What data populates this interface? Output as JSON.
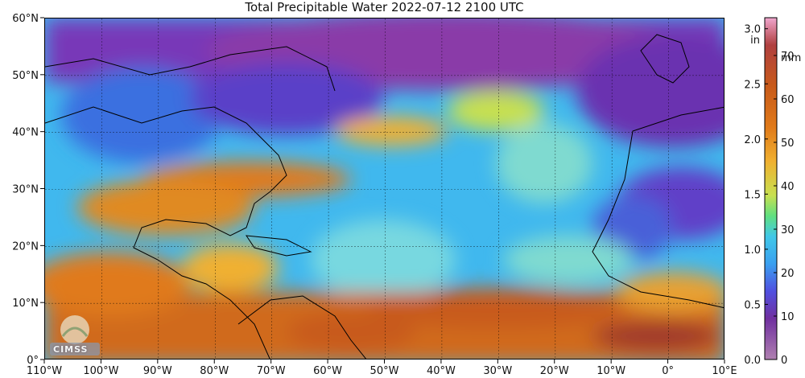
{
  "title": "Total Precipitable Water  2022-07-12 2100 UTC",
  "lat_labels": [
    "60°N",
    "50°N",
    "40°N",
    "30°N",
    "20°N",
    "10°N",
    "0°"
  ],
  "lon_labels": [
    "110°W",
    "100°W",
    "90°W",
    "80°W",
    "70°W",
    "60°W",
    "50°W",
    "40°W",
    "30°W",
    "20°W",
    "10°W",
    "0°",
    "10°E"
  ],
  "colorbar": {
    "left_unit": "in",
    "left_ticks": [
      "3.0",
      "2.5",
      "2.0",
      "1.5",
      "1.0",
      "0.5",
      "0.0"
    ],
    "right_unit": "mm",
    "right_ticks": [
      "70",
      "60",
      "50",
      "40",
      "30",
      "20",
      "10",
      "0"
    ],
    "colors": [
      "#f1a7cf",
      "#b04040",
      "#c85a1a",
      "#e07a1a",
      "#f0b030",
      "#c8e050",
      "#60e080",
      "#40c8e8",
      "#3aa0f0",
      "#5050e0",
      "#7030a0",
      "#b080b0"
    ]
  },
  "logo_text": "CIMSS"
}
